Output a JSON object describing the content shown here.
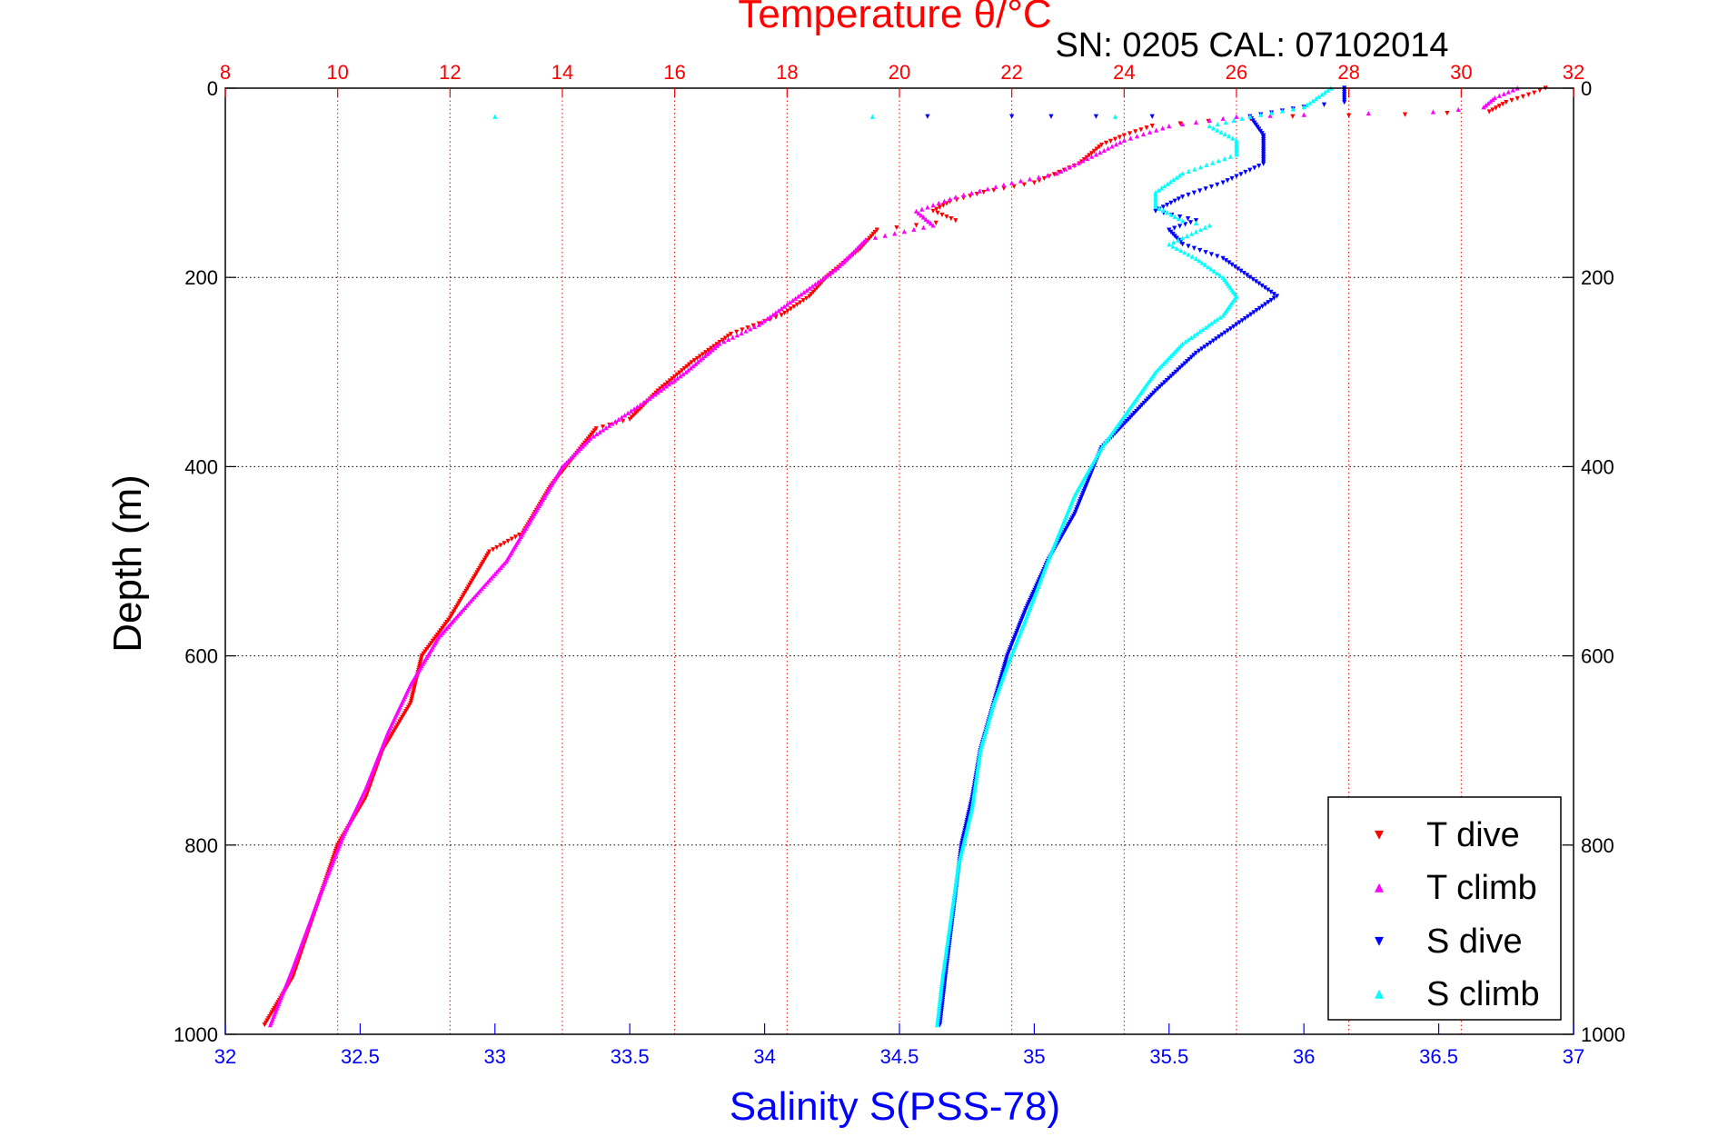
{
  "chart_data": {
    "type": "scatter",
    "title": "Temperature θ/°C",
    "subtitle": "SN: 0205  CAL: 07102014",
    "xlabel": "Salinity S(PSS-78)",
    "ylabel": "Depth (m)",
    "top_axis": {
      "label": "Temperature θ/°C",
      "range": [
        8,
        32
      ],
      "ticks": [
        "8",
        "10",
        "12",
        "14",
        "16",
        "18",
        "20",
        "22",
        "24",
        "26",
        "28",
        "30",
        "32"
      ],
      "color": "#ff0000",
      "grid": "dotted"
    },
    "bottom_axis": {
      "label": "Salinity S(PSS-78)",
      "range": [
        32,
        37
      ],
      "ticks": [
        "32",
        "32.5",
        "33",
        "33.5",
        "34",
        "34.5",
        "35",
        "35.5",
        "36",
        "36.5",
        "37"
      ],
      "color": "#0000ff"
    },
    "y_axis": {
      "range": [
        0,
        1000
      ],
      "reversed": true,
      "ticks": [
        "0",
        "200",
        "400",
        "600",
        "800",
        "1000"
      ],
      "grid": "dotted"
    },
    "legend": {
      "position": "bottom-right",
      "entries": [
        {
          "label": "T dive",
          "marker": "▾",
          "color": "#ff0000"
        },
        {
          "label": "T climb",
          "marker": "▴",
          "color": "#ff00ff"
        },
        {
          "label": "S dive",
          "marker": "▾",
          "color": "#0000ff"
        },
        {
          "label": "S climb",
          "marker": "▴",
          "color": "#00ffff"
        }
      ]
    },
    "series": [
      {
        "name": "T dive",
        "axis": "top",
        "color": "#ff0000",
        "marker": "down",
        "points": [
          [
            31.5,
            0
          ],
          [
            31.3,
            5
          ],
          [
            30.8,
            15
          ],
          [
            30.5,
            25
          ],
          [
            29.0,
            28
          ],
          [
            27.0,
            30
          ],
          [
            25.5,
            35
          ],
          [
            24.5,
            40
          ],
          [
            24.0,
            50
          ],
          [
            23.6,
            60
          ],
          [
            23.2,
            80
          ],
          [
            22.4,
            100
          ],
          [
            21.5,
            110
          ],
          [
            20.9,
            120
          ],
          [
            20.6,
            130
          ],
          [
            21.0,
            140
          ],
          [
            20.3,
            145
          ],
          [
            19.6,
            150
          ],
          [
            19.3,
            170
          ],
          [
            18.7,
            200
          ],
          [
            18.4,
            220
          ],
          [
            17.9,
            240
          ],
          [
            17.0,
            260
          ],
          [
            16.3,
            290
          ],
          [
            15.7,
            320
          ],
          [
            15.2,
            350
          ],
          [
            14.6,
            360
          ],
          [
            14.2,
            390
          ],
          [
            13.8,
            420
          ],
          [
            13.3,
            470
          ],
          [
            12.7,
            490
          ],
          [
            12.0,
            560
          ],
          [
            11.5,
            600
          ],
          [
            11.3,
            650
          ],
          [
            10.8,
            700
          ],
          [
            10.5,
            750
          ],
          [
            10.0,
            800
          ],
          [
            9.6,
            870
          ],
          [
            9.2,
            940
          ],
          [
            8.7,
            990
          ]
        ]
      },
      {
        "name": "T climb",
        "axis": "top",
        "color": "#ff00ff",
        "marker": "up",
        "points": [
          [
            31.0,
            0
          ],
          [
            30.6,
            10
          ],
          [
            30.4,
            20
          ],
          [
            29.5,
            25
          ],
          [
            27.2,
            28
          ],
          [
            26.0,
            30
          ],
          [
            24.8,
            40
          ],
          [
            24.0,
            55
          ],
          [
            23.5,
            70
          ],
          [
            22.8,
            90
          ],
          [
            22.0,
            100
          ],
          [
            21.0,
            115
          ],
          [
            20.3,
            130
          ],
          [
            20.6,
            145
          ],
          [
            19.4,
            160
          ],
          [
            18.9,
            190
          ],
          [
            18.2,
            220
          ],
          [
            17.5,
            250
          ],
          [
            16.8,
            270
          ],
          [
            16.2,
            300
          ],
          [
            15.5,
            330
          ],
          [
            15.0,
            350
          ],
          [
            14.5,
            370
          ],
          [
            14.0,
            400
          ],
          [
            13.5,
            450
          ],
          [
            13.0,
            500
          ],
          [
            12.4,
            540
          ],
          [
            11.8,
            580
          ],
          [
            11.3,
            630
          ],
          [
            10.9,
            680
          ],
          [
            10.5,
            740
          ],
          [
            10.1,
            790
          ],
          [
            9.7,
            850
          ],
          [
            9.2,
            930
          ],
          [
            8.8,
            990
          ]
        ]
      },
      {
        "name": "S dive",
        "axis": "bottom",
        "color": "#0000ff",
        "marker": "down",
        "points": [
          [
            36.15,
            0
          ],
          [
            36.15,
            15
          ],
          [
            36.0,
            20
          ],
          [
            35.8,
            30
          ],
          [
            35.85,
            50
          ],
          [
            35.85,
            80
          ],
          [
            35.7,
            100
          ],
          [
            35.55,
            115
          ],
          [
            35.45,
            130
          ],
          [
            35.6,
            140
          ],
          [
            35.5,
            150
          ],
          [
            35.55,
            165
          ],
          [
            35.7,
            180
          ],
          [
            35.8,
            200
          ],
          [
            35.9,
            220
          ],
          [
            35.75,
            250
          ],
          [
            35.6,
            280
          ],
          [
            35.45,
            320
          ],
          [
            35.35,
            350
          ],
          [
            35.25,
            380
          ],
          [
            35.15,
            450
          ],
          [
            35.05,
            500
          ],
          [
            34.97,
            550
          ],
          [
            34.9,
            600
          ],
          [
            34.85,
            650
          ],
          [
            34.8,
            700
          ],
          [
            34.77,
            750
          ],
          [
            34.73,
            800
          ],
          [
            34.7,
            870
          ],
          [
            34.67,
            940
          ],
          [
            34.65,
            990
          ]
        ]
      },
      {
        "name": "S climb",
        "axis": "bottom",
        "color": "#00ffff",
        "marker": "up",
        "points": [
          [
            36.1,
            0
          ],
          [
            36.0,
            20
          ],
          [
            35.8,
            30
          ],
          [
            35.65,
            40
          ],
          [
            35.75,
            55
          ],
          [
            35.75,
            70
          ],
          [
            35.55,
            90
          ],
          [
            35.45,
            110
          ],
          [
            35.45,
            125
          ],
          [
            35.55,
            140
          ],
          [
            35.65,
            145
          ],
          [
            35.5,
            165
          ],
          [
            35.6,
            180
          ],
          [
            35.7,
            200
          ],
          [
            35.75,
            220
          ],
          [
            35.7,
            240
          ],
          [
            35.55,
            270
          ],
          [
            35.45,
            300
          ],
          [
            35.35,
            340
          ],
          [
            35.25,
            380
          ],
          [
            35.15,
            430
          ],
          [
            35.05,
            500
          ],
          [
            34.97,
            560
          ],
          [
            34.9,
            610
          ],
          [
            34.85,
            650
          ],
          [
            34.8,
            700
          ],
          [
            34.77,
            760
          ],
          [
            34.72,
            820
          ],
          [
            34.69,
            880
          ],
          [
            34.66,
            940
          ],
          [
            34.64,
            990
          ]
        ]
      }
    ],
    "scatter_points_at_30m": {
      "T dive": [
        20.5,
        22.0,
        22.7,
        23.5,
        24.5
      ],
      "S climb": [
        33.0,
        34.4,
        35.3
      ]
    }
  }
}
